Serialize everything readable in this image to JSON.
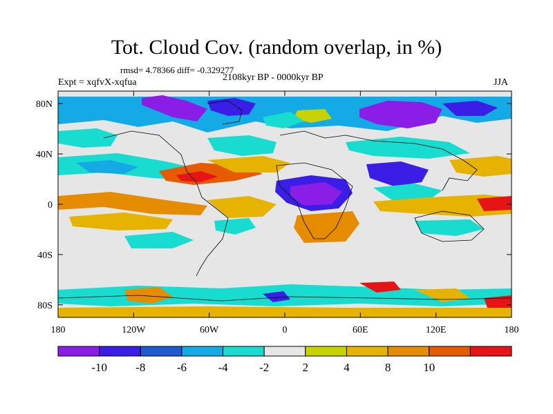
{
  "title": "Tot. Cloud Cov. (random overlap, in %)",
  "stats": "rmsd= 4.78366 diff= -0.329277",
  "period": "2108kyr BP - 0000kyr BP",
  "experiment": "Expt = xqfvX-xqfua",
  "season": "JJA",
  "map": {
    "lon_range": [
      -180,
      180
    ],
    "lat_range": [
      -90,
      90
    ],
    "lat_ticks": [
      {
        "lat": 80,
        "label": "80N"
      },
      {
        "lat": 40,
        "label": "40N"
      },
      {
        "lat": 0,
        "label": "0"
      },
      {
        "lat": -40,
        "label": "40S"
      },
      {
        "lat": -80,
        "label": "80S"
      }
    ],
    "lon_ticks": [
      {
        "lon": -180,
        "label": "180"
      },
      {
        "lon": -120,
        "label": "120W"
      },
      {
        "lon": -60,
        "label": "60W"
      },
      {
        "lon": 0,
        "label": "0"
      },
      {
        "lon": 60,
        "label": "60E"
      },
      {
        "lon": 120,
        "label": "120E"
      },
      {
        "lon": 180,
        "label": "180"
      }
    ]
  },
  "colorbar": {
    "colors": [
      "#8b1ee6",
      "#3a1ee6",
      "#1e5ad2",
      "#14aae6",
      "#18dcd0",
      "#e6e6e6",
      "#c8d200",
      "#e6b400",
      "#e68c00",
      "#e65a00",
      "#e61414"
    ],
    "labels": [
      {
        "boundary": 1,
        "label": "-10"
      },
      {
        "boundary": 2,
        "label": "-8"
      },
      {
        "boundary": 3,
        "label": "-6"
      },
      {
        "boundary": 4,
        "label": "-4"
      },
      {
        "boundary": 5,
        "label": "-2"
      },
      {
        "boundary": 6,
        "label": "2"
      },
      {
        "boundary": 7,
        "label": "4"
      },
      {
        "boundary": 8,
        "label": "8"
      },
      {
        "boundary": 9,
        "label": "10"
      }
    ]
  }
}
